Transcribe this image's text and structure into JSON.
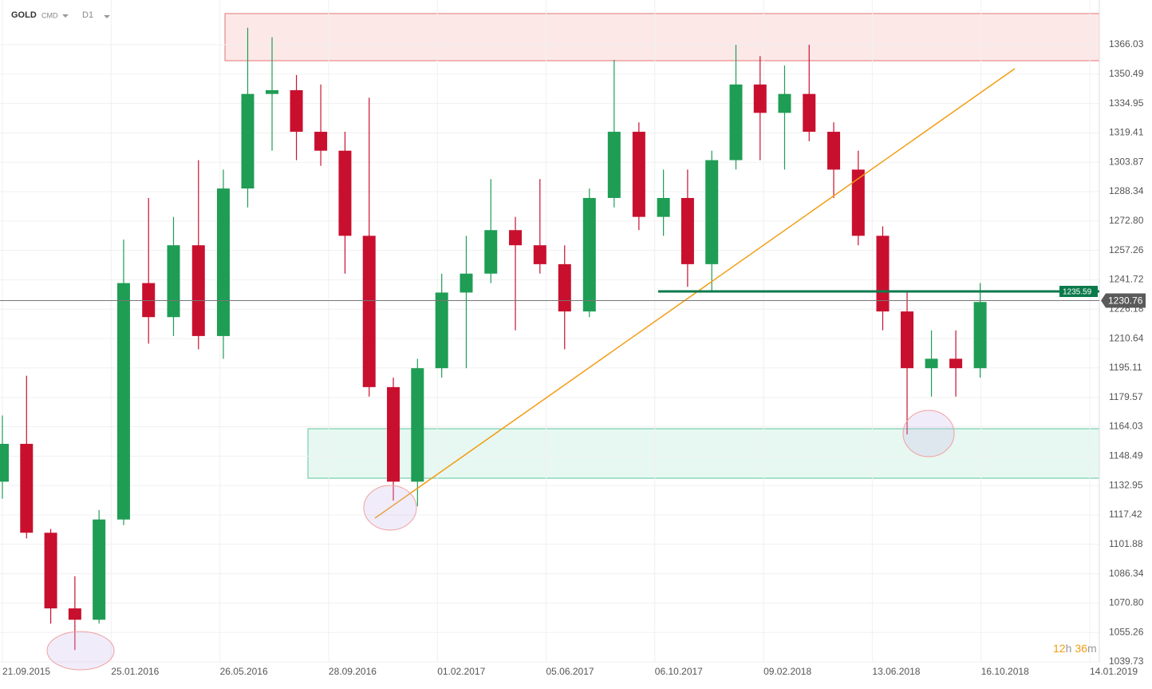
{
  "chart_data": {
    "type": "candlestick",
    "symbol": "GOLD",
    "market": "CMD",
    "timeframe": "D1",
    "countdown": {
      "hours": "12",
      "hours_unit": "h",
      "minutes": "36",
      "minutes_unit": "m"
    },
    "x": [
      "21.09.2015",
      "19.10.2015",
      "16.11.2015",
      "14.12.2015",
      "11.01.2016",
      "08.02.2016",
      "07.03.2016",
      "04.04.2016",
      "02.05.2016",
      "30.05.2016",
      "27.06.2016",
      "25.07.2016",
      "22.08.2016",
      "19.09.2016",
      "17.10.2016",
      "14.11.2016",
      "12.12.2016",
      "09.01.2017",
      "06.02.2017",
      "06.03.2017",
      "03.04.2017",
      "01.05.2017",
      "29.05.2017",
      "26.06.2017",
      "24.07.2017",
      "21.08.2017",
      "18.09.2017",
      "16.10.2017",
      "13.11.2017",
      "11.12.2017",
      "08.01.2018",
      "05.02.2018",
      "05.03.2018",
      "02.04.2018",
      "30.04.2018",
      "28.05.2018",
      "25.06.2018",
      "23.07.2018",
      "20.08.2018",
      "17.09.2018",
      "15.10.2018"
    ],
    "open": [
      1135,
      1155,
      1108,
      1068,
      1062,
      1115,
      1240,
      1222,
      1260,
      1212,
      1290,
      1340,
      1342,
      1320,
      1310,
      1265,
      1185,
      1135,
      1195,
      1235,
      1245,
      1268,
      1260,
      1250,
      1225,
      1285,
      1320,
      1275,
      1285,
      1250,
      1305,
      1345,
      1330,
      1340,
      1320,
      1300,
      1265,
      1225,
      1195,
      1200,
      1195
    ],
    "high": [
      1170,
      1191,
      1110,
      1085,
      1120,
      1263,
      1285,
      1275,
      1305,
      1300,
      1375,
      1370,
      1350,
      1345,
      1320,
      1338,
      1190,
      1200,
      1245,
      1265,
      1295,
      1275,
      1295,
      1260,
      1290,
      1358,
      1325,
      1300,
      1300,
      1310,
      1366,
      1360,
      1355,
      1366,
      1325,
      1310,
      1270,
      1235,
      1215,
      1215,
      1240
    ],
    "low": [
      1126,
      1105,
      1060,
      1046,
      1060,
      1112,
      1208,
      1212,
      1205,
      1200,
      1280,
      1310,
      1305,
      1302,
      1245,
      1180,
      1125,
      1122,
      1190,
      1195,
      1240,
      1215,
      1245,
      1205,
      1222,
      1280,
      1268,
      1265,
      1238,
      1236,
      1300,
      1305,
      1300,
      1315,
      1285,
      1260,
      1215,
      1160,
      1180,
      1180,
      1190
    ],
    "close": [
      1155,
      1108,
      1068,
      1062,
      1115,
      1240,
      1222,
      1260,
      1212,
      1290,
      1340,
      1342,
      1320,
      1310,
      1265,
      1185,
      1135,
      1195,
      1235,
      1245,
      1268,
      1260,
      1250,
      1225,
      1285,
      1320,
      1275,
      1285,
      1250,
      1305,
      1345,
      1330,
      1340,
      1320,
      1300,
      1265,
      1225,
      1195,
      1200,
      1195,
      1230
    ],
    "up_color": "#1f9d55",
    "down_color": "#c8102e",
    "ylim": [
      1032.98,
      1389.67
    ],
    "yticks": [
      1039.73,
      1055.26,
      {
        "value": 1070.8,
        "label": "1070.80"
      },
      1086.34,
      1101.88,
      1117.42,
      1132.95,
      1148.49,
      1164.03,
      1179.57,
      1195.11,
      1210.64,
      1226.18,
      1241.72,
      1257.26,
      {
        "value": 1272.8,
        "label": "1272.80"
      },
      1288.34,
      1303.87,
      1319.41,
      1334.95,
      1350.49,
      1366.03
    ],
    "xticks": [
      "21.09.2015",
      "25.01.2016",
      "26.05.2016",
      "28.09.2016",
      "01.02.2017",
      "05.06.2017",
      "06.10.2017",
      "09.02.2018",
      "13.06.2018",
      "16.10.2018",
      "14.01.2019"
    ],
    "grid": true,
    "level": 1235.59,
    "last_price": 1230.76
  }
}
